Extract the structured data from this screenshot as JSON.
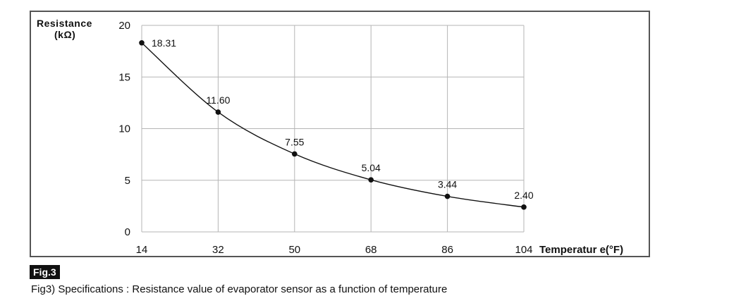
{
  "chart_data": {
    "type": "line",
    "ylabel_line1": "Resistance",
    "ylabel_line2": "(kΩ)",
    "xlabel": "Temperatur e(°F)",
    "x": [
      14,
      32,
      50,
      68,
      86,
      104
    ],
    "y": [
      18.31,
      11.6,
      7.55,
      5.04,
      3.44,
      2.4
    ],
    "data_labels": [
      "18.31",
      "11.60",
      "7.55",
      "5.04",
      "3.44",
      "2.40"
    ],
    "x_ticks": [
      "14",
      "32",
      "50",
      "68",
      "86",
      "104"
    ],
    "y_ticks": [
      "0",
      "5",
      "10",
      "15",
      "20"
    ],
    "xlim": [
      14,
      104
    ],
    "ylim": [
      0,
      20
    ],
    "grid": true,
    "line_color": "#111111",
    "grid_color": "#b5b5b5"
  },
  "figure": {
    "tag": "Fig.3",
    "caption": "Fig3) Specifications : Resistance value of evaporator sensor as a function of temperature"
  }
}
